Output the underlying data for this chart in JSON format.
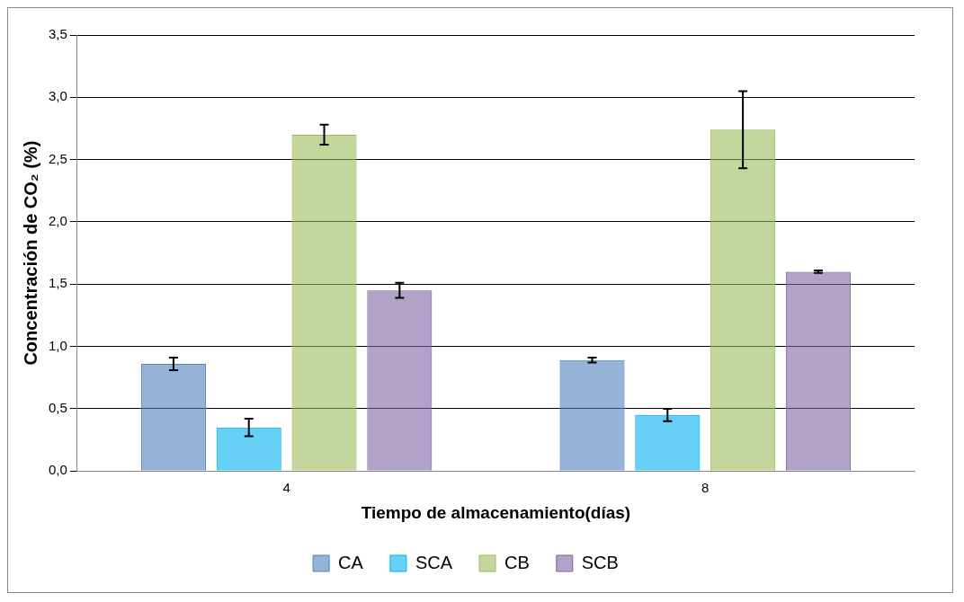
{
  "chart_data": {
    "type": "bar",
    "xlabel": "Tiempo de almacenamiento(días)",
    "ylabel": "Concentración de CO₂ (%)",
    "categories": [
      "4",
      "8"
    ],
    "series": [
      {
        "name": "CA",
        "color": "#4f81bd",
        "values": [
          0.86,
          0.89
        ],
        "errors": [
          0.05,
          0.02
        ]
      },
      {
        "name": "SCA",
        "color": "#00b0f0",
        "values": [
          0.35,
          0.45
        ],
        "errors": [
          0.07,
          0.05
        ]
      },
      {
        "name": "CB",
        "color": "#9bbb59",
        "values": [
          2.7,
          2.74
        ],
        "errors": [
          0.08,
          0.31
        ]
      },
      {
        "name": "SCB",
        "color": "#8064a2",
        "values": [
          1.45,
          1.6
        ],
        "errors": [
          0.06,
          0.01
        ]
      }
    ],
    "ylim": [
      0,
      3.5
    ],
    "yticks": [
      {
        "value": 0,
        "label": "0,0"
      },
      {
        "value": 0.5,
        "label": "0,5"
      },
      {
        "value": 1,
        "label": "1,0"
      },
      {
        "value": 1.5,
        "label": "1,5"
      },
      {
        "value": 2,
        "label": "2,0"
      },
      {
        "value": 2.5,
        "label": "2,5"
      },
      {
        "value": 3,
        "label": "3,0"
      },
      {
        "value": 3.5,
        "label": "3,5"
      }
    ],
    "grid": "y",
    "legend": "bottom"
  }
}
